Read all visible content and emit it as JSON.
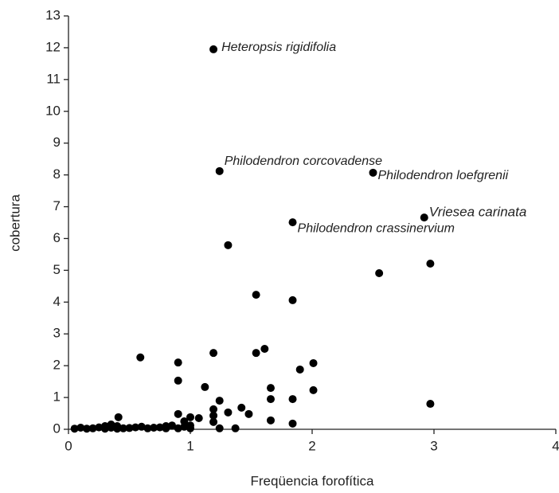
{
  "chart_data": {
    "type": "scatter",
    "xlabel": "Freqüencia forofítica",
    "ylabel": "cobertura",
    "xlim": [
      0,
      4
    ],
    "ylim": [
      0,
      13
    ],
    "xticks": [
      0,
      1,
      2,
      3,
      4
    ],
    "yticks": [
      0,
      1,
      2,
      3,
      4,
      5,
      6,
      7,
      8,
      9,
      10,
      11,
      12,
      13
    ],
    "color": "#000000",
    "x": [
      1.19,
      1.24,
      2.5,
      2.92,
      1.84,
      1.31,
      2.97,
      2.55,
      1.54,
      1.84,
      1.61,
      1.54,
      1.19,
      0.59,
      0.9,
      2.01,
      1.9,
      0.9,
      1.12,
      1.66,
      2.01,
      1.24,
      1.66,
      1.84,
      2.97,
      1.42,
      1.19,
      1.31,
      1.48,
      0.9,
      1.19,
      1.0,
      1.07,
      0.41,
      1.19,
      1.66,
      0.95,
      1.84,
      1.24,
      1.37,
      0.05,
      0.1,
      0.15,
      0.2,
      0.25,
      0.3,
      0.3,
      0.35,
      0.35,
      0.4,
      0.4,
      0.45,
      0.5,
      0.55,
      0.6,
      0.65,
      0.7,
      0.75,
      0.8,
      0.8,
      0.85,
      0.9,
      0.95,
      1.0,
      1.0
    ],
    "values": [
      11.95,
      8.12,
      8.07,
      6.66,
      6.51,
      5.79,
      5.21,
      4.91,
      4.23,
      4.06,
      2.53,
      2.4,
      2.4,
      2.26,
      2.1,
      2.08,
      1.88,
      1.53,
      1.33,
      1.3,
      1.23,
      0.9,
      0.95,
      0.95,
      0.8,
      0.68,
      0.63,
      0.53,
      0.48,
      0.48,
      0.43,
      0.38,
      0.35,
      0.38,
      0.23,
      0.28,
      0.25,
      0.18,
      0.03,
      0.03,
      0.02,
      0.05,
      0.02,
      0.03,
      0.06,
      0.1,
      0.02,
      0.15,
      0.05,
      0.1,
      0.02,
      0.03,
      0.04,
      0.06,
      0.08,
      0.03,
      0.05,
      0.06,
      0.1,
      0.03,
      0.12,
      0.03,
      0.08,
      0.03,
      0.12
    ],
    "annotations": [
      {
        "text": "Heteropsis rigidifolia",
        "x": 1.19,
        "y": 11.95
      },
      {
        "text": "Philodendron corcovadense",
        "x": 1.24,
        "y": 8.12
      },
      {
        "text": "Philodendron loefgrenii",
        "x": 2.5,
        "y": 8.07
      },
      {
        "text": "Vriesea carinata",
        "x": 2.92,
        "y": 6.66
      },
      {
        "text": "Philodendron crassinervium",
        "x": 1.84,
        "y": 6.51
      }
    ]
  }
}
